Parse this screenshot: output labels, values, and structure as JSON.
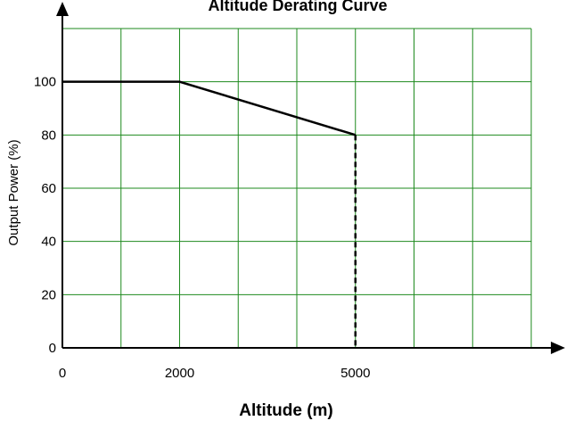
{
  "chart_data": {
    "type": "line",
    "title": "Altitude Derating Curve",
    "xlabel": "Altitude (m)",
    "ylabel": "Output Power (%)",
    "x_tick_labels": [
      "0",
      "2000",
      "5000"
    ],
    "y_tick_labels": [
      "0",
      "20",
      "40",
      "60",
      "80",
      "100"
    ],
    "x_ticks": [
      0,
      2000,
      5000
    ],
    "y_ticks": [
      0,
      20,
      40,
      60,
      80,
      100
    ],
    "xlim": [
      0,
      8000
    ],
    "ylim": [
      0,
      120
    ],
    "grid": true,
    "series": [
      {
        "points": [
          [
            0,
            100
          ],
          [
            2000,
            100
          ],
          [
            5000,
            80
          ]
        ],
        "style": "solid",
        "color": "#000000"
      },
      {
        "points": [
          [
            5000,
            80
          ],
          [
            5000,
            0
          ]
        ],
        "style": "dashed",
        "color": "#000000"
      }
    ],
    "grid_color": "#1e8a1e",
    "axis_color": "#000000"
  }
}
